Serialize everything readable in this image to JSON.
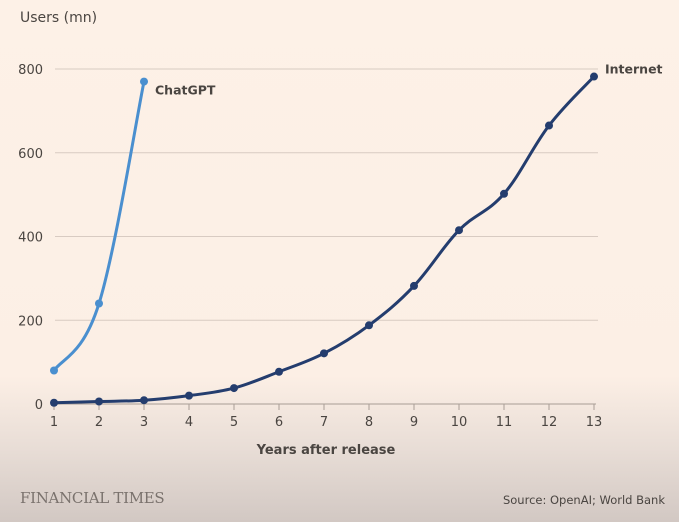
{
  "chart_data": {
    "type": "line",
    "ylabel": "Users (mn)",
    "xlabel": "Years after release",
    "x": [
      1,
      2,
      3,
      4,
      5,
      6,
      7,
      8,
      9,
      10,
      11,
      12,
      13
    ],
    "xticks": [
      "1",
      "2",
      "3",
      "4",
      "5",
      "6",
      "7",
      "8",
      "9",
      "10",
      "11",
      "12",
      "13"
    ],
    "yticks": [
      "0",
      "200",
      "400",
      "600",
      "800"
    ],
    "ytick_values": [
      0,
      200,
      400,
      600,
      800
    ],
    "xlim": [
      1,
      13
    ],
    "ylim": [
      0,
      800
    ],
    "grid": "horizontal",
    "series": [
      {
        "name": "ChatGPT",
        "x": [
          1,
          2,
          3
        ],
        "values": [
          80,
          240,
          770
        ],
        "color": "#4a8fcf"
      },
      {
        "name": "Internet",
        "x": [
          1,
          2,
          3,
          4,
          5,
          6,
          7,
          8,
          9,
          10,
          11,
          12,
          13
        ],
        "values": [
          3,
          6,
          9,
          20,
          38,
          77,
          121,
          188,
          282,
          415,
          502,
          665,
          782
        ],
        "color": "#243d6e"
      }
    ]
  },
  "footer": {
    "brand": "FINANCIAL TIMES",
    "source": "Source: OpenAI; World Bank"
  },
  "colors": {
    "background": "#fdf1e7",
    "grid": "#d8cbc2",
    "text": "#4a4541"
  }
}
